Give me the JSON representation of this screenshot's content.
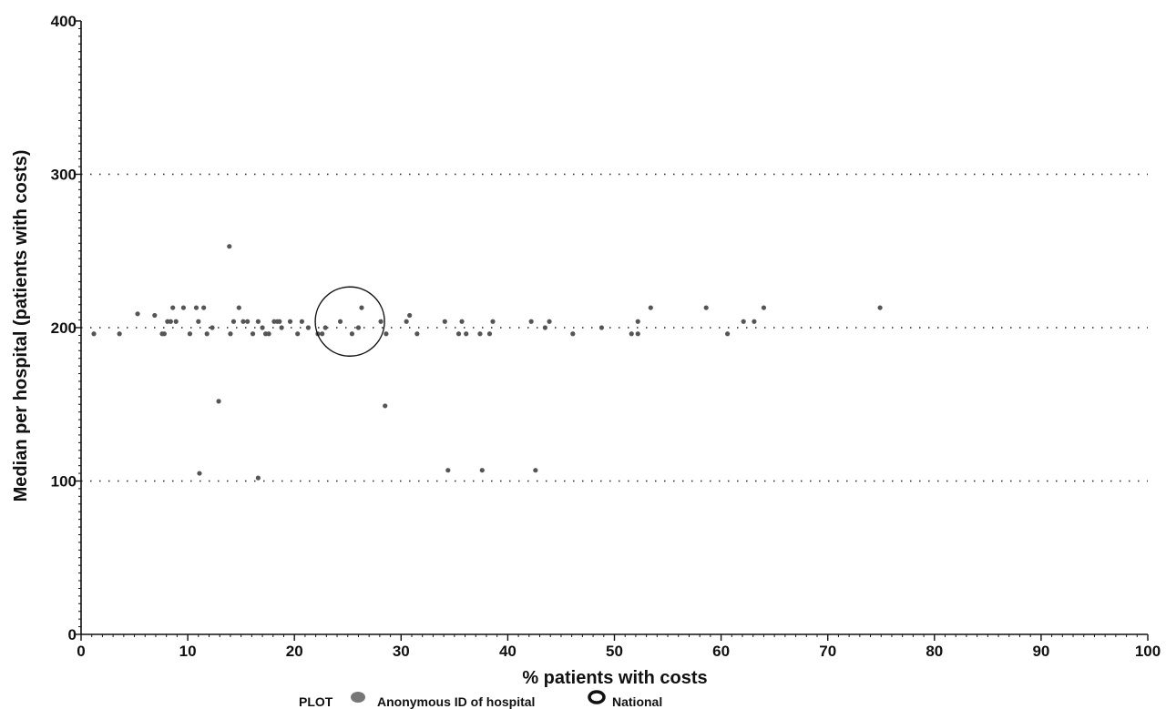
{
  "chart_data": {
    "type": "scatter",
    "xlabel": "% patients with costs",
    "ylabel": "Median per hospital (patients with costs)",
    "xlim": [
      0,
      100
    ],
    "ylim": [
      0,
      400
    ],
    "x_ticks": [
      "0",
      "10",
      "20",
      "30",
      "40",
      "50",
      "60",
      "70",
      "80",
      "90",
      "100"
    ],
    "y_ticks": [
      "0",
      "100",
      "200",
      "300",
      "400"
    ],
    "reference_lines_y": [
      100,
      200,
      300
    ],
    "legend": {
      "prefix": "PLOT",
      "entries": [
        {
          "label": "Anonymous ID of hospital",
          "marker": "filled-dot"
        },
        {
          "label": "National",
          "marker": "open-circle"
        }
      ],
      "placement": "bottom-center"
    },
    "series": [
      {
        "marker": "filled-dot",
        "color": "#555555",
        "points": [
          [
            1.2,
            196
          ],
          [
            3.6,
            196
          ],
          [
            5.3,
            209
          ],
          [
            6.9,
            208
          ],
          [
            7.6,
            196
          ],
          [
            7.8,
            196
          ],
          [
            8.1,
            204
          ],
          [
            8.4,
            204
          ],
          [
            8.6,
            213
          ],
          [
            8.9,
            204
          ],
          [
            9.6,
            213
          ],
          [
            10.2,
            196
          ],
          [
            10.8,
            213
          ],
          [
            11.0,
            204
          ],
          [
            11.5,
            213
          ],
          [
            11.8,
            196
          ],
          [
            12.3,
            200
          ],
          [
            12.9,
            152
          ],
          [
            11.1,
            105
          ],
          [
            13.9,
            253
          ],
          [
            14.0,
            196
          ],
          [
            14.3,
            204
          ],
          [
            14.8,
            213
          ],
          [
            15.2,
            204
          ],
          [
            15.6,
            204
          ],
          [
            16.1,
            196
          ],
          [
            16.6,
            204
          ],
          [
            16.6,
            102
          ],
          [
            17.0,
            200
          ],
          [
            17.3,
            196
          ],
          [
            17.6,
            196
          ],
          [
            18.1,
            204
          ],
          [
            18.4,
            204
          ],
          [
            18.6,
            204
          ],
          [
            18.8,
            200
          ],
          [
            19.6,
            204
          ],
          [
            20.3,
            196
          ],
          [
            20.7,
            204
          ],
          [
            21.3,
            200
          ],
          [
            22.2,
            196
          ],
          [
            22.6,
            196
          ],
          [
            22.9,
            200
          ],
          [
            24.3,
            204
          ],
          [
            25.4,
            196
          ],
          [
            26.0,
            200
          ],
          [
            26.3,
            213
          ],
          [
            28.1,
            204
          ],
          [
            28.6,
            196
          ],
          [
            28.5,
            149
          ],
          [
            30.5,
            204
          ],
          [
            30.8,
            208
          ],
          [
            31.5,
            196
          ],
          [
            34.1,
            204
          ],
          [
            34.4,
            107
          ],
          [
            35.4,
            196
          ],
          [
            35.7,
            204
          ],
          [
            36.1,
            196
          ],
          [
            37.4,
            196
          ],
          [
            37.6,
            107
          ],
          [
            38.3,
            196
          ],
          [
            38.6,
            204
          ],
          [
            42.2,
            204
          ],
          [
            42.6,
            107
          ],
          [
            43.5,
            200
          ],
          [
            43.9,
            204
          ],
          [
            46.1,
            196
          ],
          [
            48.8,
            200
          ],
          [
            51.6,
            196
          ],
          [
            52.2,
            204
          ],
          [
            52.2,
            196
          ],
          [
            53.4,
            213
          ],
          [
            58.6,
            213
          ],
          [
            60.6,
            196
          ],
          [
            62.1,
            204
          ],
          [
            63.1,
            204
          ],
          [
            64.0,
            213
          ],
          [
            74.9,
            213
          ]
        ]
      },
      {
        "name": "National",
        "marker": "open-circle",
        "color": "#111111",
        "points": [
          [
            25.2,
            204
          ]
        ]
      }
    ]
  }
}
